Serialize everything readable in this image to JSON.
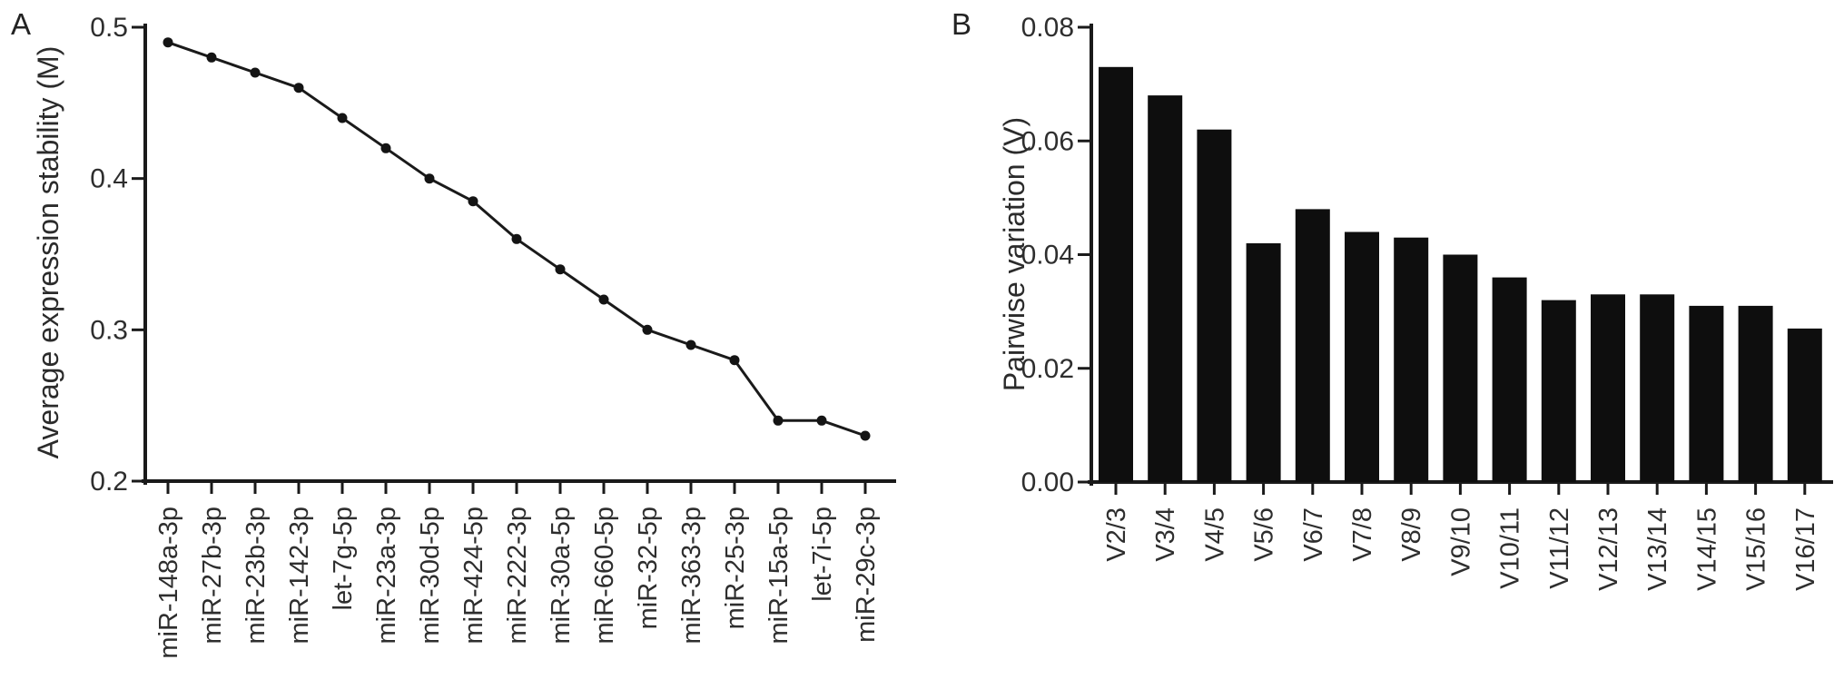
{
  "figure": {
    "background": "#ffffff",
    "ink_color": "#1a1a1a",
    "text_color": "#2e2e2e"
  },
  "chart_data": [
    {
      "type": "line",
      "panel_label": "A",
      "title": "",
      "xlabel": "",
      "ylabel": "Average expression stability (M)",
      "ylim": [
        0.2,
        0.5
      ],
      "ytick_values": [
        0.5,
        0.4,
        0.3,
        0.2
      ],
      "ytick_labels": [
        "0.5",
        "0.4",
        "0.3",
        "0.2"
      ],
      "grid": false,
      "legend": null,
      "marker": "circle",
      "line_color": "#1a1a1a",
      "categories": [
        "miR-148a-3p",
        "miR-27b-3p",
        "miR-23b-3p",
        "miR-142-3p",
        "let-7g-5p",
        "miR-23a-3p",
        "miR-30d-5p",
        "miR-424-5p",
        "miR-222-3p",
        "miR-30a-5p",
        "miR-660-5p",
        "miR-32-5p",
        "miR-363-3p",
        "miR-25-3p",
        "miR-15a-5p",
        "let-7i-5p",
        "miR-29c-3p"
      ],
      "values": [
        0.49,
        0.48,
        0.47,
        0.46,
        0.44,
        0.42,
        0.4,
        0.385,
        0.36,
        0.34,
        0.32,
        0.3,
        0.29,
        0.28,
        0.24,
        0.24,
        0.23
      ]
    },
    {
      "type": "bar",
      "panel_label": "B",
      "title": "",
      "xlabel": "",
      "ylabel": "Pairwise variation (V)",
      "ylim": [
        0.0,
        0.08
      ],
      "ytick_values": [
        0.08,
        0.06,
        0.04,
        0.02,
        0.0
      ],
      "ytick_labels": [
        "0.08",
        "0.06",
        "0.04",
        "0.02",
        "0.00"
      ],
      "grid": false,
      "legend": null,
      "bar_color": "#0e0e0e",
      "categories": [
        "V2/3",
        "V3/4",
        "V4/5",
        "V5/6",
        "V6/7",
        "V7/8",
        "V8/9",
        "V9/10",
        "V10/11",
        "V11/12",
        "V12/13",
        "V13/14",
        "V14/15",
        "V15/16",
        "V16/17"
      ],
      "values": [
        0.073,
        0.068,
        0.062,
        0.042,
        0.048,
        0.044,
        0.043,
        0.04,
        0.036,
        0.032,
        0.033,
        0.033,
        0.031,
        0.031,
        0.027
      ]
    }
  ]
}
